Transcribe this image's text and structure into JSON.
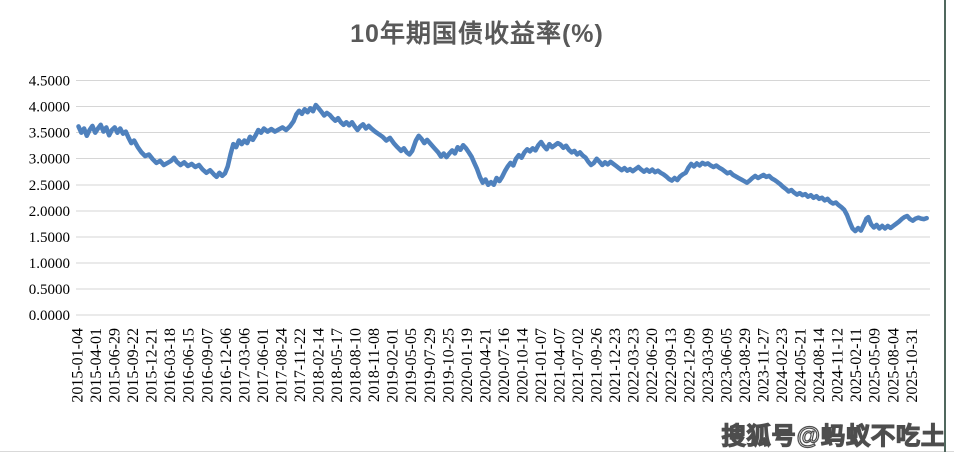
{
  "chart": {
    "title": "10年期国债收益率(%)"
  },
  "watermark": {
    "text": "搜狐号@蚂蚁不吃土"
  },
  "colors": {
    "line": "#4F81BD",
    "gridline": "#D6D6D6",
    "title_text": "#595959",
    "axis_text": "#000000",
    "background": "#FFFFFF",
    "watermark_fill": "#FFFFFF",
    "watermark_outline": "#4D4D4D",
    "right_border": "#50685E"
  },
  "chart_data": {
    "type": "line",
    "title": "10年期国债收益率(%)",
    "xlabel": "",
    "ylabel": "",
    "ylim": [
      0,
      4.5
    ],
    "ytick_step": 0.5,
    "y_tick_values": [
      0,
      0.5,
      1.0,
      1.5,
      2.0,
      2.5,
      3.0,
      3.5,
      4.0,
      4.5
    ],
    "y_tick_labels": [
      "0.0000",
      "0.5000",
      "1.0000",
      "1.5000",
      "2.0000",
      "2.5000",
      "3.0000",
      "3.5000",
      "4.0000",
      "4.5000"
    ],
    "grid": "horizontal",
    "legend": "none",
    "x_unit": "index into categories (ticks every ~60 trading days)",
    "categories": [
      "2015-01-04",
      "2015-04-01",
      "2015-06-29",
      "2015-09-22",
      "2015-12-21",
      "2016-03-18",
      "2016-06-15",
      "2016-09-07",
      "2016-12-06",
      "2017-03-06",
      "2017-06-01",
      "2017-08-24",
      "2017-11-22",
      "2018-02-14",
      "2018-05-17",
      "2018-08-10",
      "2018-11-08",
      "2019-02-01",
      "2019-05-05",
      "2019-07-29",
      "2019-10-25",
      "2020-01-19",
      "2020-04-21",
      "2020-07-16",
      "2020-10-14",
      "2021-01-07",
      "2021-04-07",
      "2021-07-02",
      "2021-09-26",
      "2021-12-23",
      "2022-03-23",
      "2022-06-20",
      "2022-09-13",
      "2022-12-09",
      "2023-03-09",
      "2023-06-05",
      "2023-08-29",
      "2023-11-27",
      "2024-02-23",
      "2024-05-21",
      "2024-08-14",
      "2024-11-12",
      "2025-02-11",
      "2025-05-09",
      "2025-08-04",
      "2025-10-31"
    ],
    "series": [
      {
        "name": "10年期国债收益率",
        "points": [
          [
            0,
            3.62
          ],
          [
            0.15,
            3.5
          ],
          [
            0.3,
            3.58
          ],
          [
            0.45,
            3.44
          ],
          [
            0.6,
            3.55
          ],
          [
            0.75,
            3.63
          ],
          [
            0.9,
            3.5
          ],
          [
            1.05,
            3.58
          ],
          [
            1.2,
            3.65
          ],
          [
            1.35,
            3.52
          ],
          [
            1.5,
            3.6
          ],
          [
            1.65,
            3.45
          ],
          [
            1.8,
            3.55
          ],
          [
            1.95,
            3.6
          ],
          [
            2.1,
            3.5
          ],
          [
            2.25,
            3.58
          ],
          [
            2.4,
            3.48
          ],
          [
            2.55,
            3.52
          ],
          [
            2.7,
            3.4
          ],
          [
            2.85,
            3.3
          ],
          [
            3.0,
            3.35
          ],
          [
            3.2,
            3.22
          ],
          [
            3.4,
            3.12
          ],
          [
            3.6,
            3.05
          ],
          [
            3.8,
            3.08
          ],
          [
            4.0,
            2.99
          ],
          [
            4.2,
            2.92
          ],
          [
            4.4,
            2.96
          ],
          [
            4.6,
            2.88
          ],
          [
            4.8,
            2.92
          ],
          [
            5.0,
            2.96
          ],
          [
            5.15,
            3.02
          ],
          [
            5.3,
            2.94
          ],
          [
            5.5,
            2.88
          ],
          [
            5.7,
            2.93
          ],
          [
            5.9,
            2.86
          ],
          [
            6.1,
            2.9
          ],
          [
            6.3,
            2.84
          ],
          [
            6.5,
            2.88
          ],
          [
            6.7,
            2.79
          ],
          [
            6.9,
            2.73
          ],
          [
            7.1,
            2.78
          ],
          [
            7.3,
            2.7
          ],
          [
            7.45,
            2.65
          ],
          [
            7.6,
            2.73
          ],
          [
            7.75,
            2.67
          ],
          [
            7.9,
            2.72
          ],
          [
            8.05,
            2.85
          ],
          [
            8.2,
            3.08
          ],
          [
            8.35,
            3.28
          ],
          [
            8.5,
            3.22
          ],
          [
            8.65,
            3.35
          ],
          [
            8.8,
            3.28
          ],
          [
            8.95,
            3.35
          ],
          [
            9.1,
            3.3
          ],
          [
            9.25,
            3.42
          ],
          [
            9.4,
            3.36
          ],
          [
            9.55,
            3.45
          ],
          [
            9.7,
            3.55
          ],
          [
            9.85,
            3.5
          ],
          [
            10.0,
            3.58
          ],
          [
            10.2,
            3.52
          ],
          [
            10.4,
            3.57
          ],
          [
            10.6,
            3.52
          ],
          [
            10.8,
            3.56
          ],
          [
            11.0,
            3.6
          ],
          [
            11.2,
            3.55
          ],
          [
            11.4,
            3.62
          ],
          [
            11.6,
            3.72
          ],
          [
            11.75,
            3.85
          ],
          [
            11.9,
            3.92
          ],
          [
            12.05,
            3.86
          ],
          [
            12.2,
            3.95
          ],
          [
            12.35,
            3.89
          ],
          [
            12.5,
            3.97
          ],
          [
            12.65,
            3.91
          ],
          [
            12.8,
            4.03
          ],
          [
            12.95,
            3.97
          ],
          [
            13.1,
            3.9
          ],
          [
            13.25,
            3.83
          ],
          [
            13.4,
            3.88
          ],
          [
            13.55,
            3.84
          ],
          [
            13.7,
            3.78
          ],
          [
            13.85,
            3.73
          ],
          [
            14.0,
            3.78
          ],
          [
            14.15,
            3.7
          ],
          [
            14.3,
            3.65
          ],
          [
            14.45,
            3.7
          ],
          [
            14.6,
            3.64
          ],
          [
            14.75,
            3.7
          ],
          [
            14.9,
            3.62
          ],
          [
            15.05,
            3.55
          ],
          [
            15.2,
            3.62
          ],
          [
            15.35,
            3.66
          ],
          [
            15.5,
            3.58
          ],
          [
            15.65,
            3.63
          ],
          [
            15.8,
            3.58
          ],
          [
            16.0,
            3.52
          ],
          [
            16.2,
            3.47
          ],
          [
            16.4,
            3.42
          ],
          [
            16.6,
            3.35
          ],
          [
            16.8,
            3.4
          ],
          [
            17.0,
            3.3
          ],
          [
            17.2,
            3.22
          ],
          [
            17.4,
            3.15
          ],
          [
            17.55,
            3.2
          ],
          [
            17.7,
            3.12
          ],
          [
            17.85,
            3.08
          ],
          [
            18.0,
            3.15
          ],
          [
            18.2,
            3.35
          ],
          [
            18.35,
            3.44
          ],
          [
            18.5,
            3.38
          ],
          [
            18.65,
            3.3
          ],
          [
            18.8,
            3.36
          ],
          [
            19.0,
            3.28
          ],
          [
            19.2,
            3.2
          ],
          [
            19.4,
            3.12
          ],
          [
            19.55,
            3.04
          ],
          [
            19.7,
            3.1
          ],
          [
            19.85,
            3.03
          ],
          [
            20.0,
            3.1
          ],
          [
            20.15,
            3.16
          ],
          [
            20.3,
            3.1
          ],
          [
            20.45,
            3.22
          ],
          [
            20.6,
            3.17
          ],
          [
            20.75,
            3.26
          ],
          [
            20.9,
            3.2
          ],
          [
            21.05,
            3.12
          ],
          [
            21.2,
            3.04
          ],
          [
            21.35,
            2.92
          ],
          [
            21.5,
            2.8
          ],
          [
            21.65,
            2.65
          ],
          [
            21.8,
            2.54
          ],
          [
            21.95,
            2.6
          ],
          [
            22.1,
            2.5
          ],
          [
            22.25,
            2.55
          ],
          [
            22.4,
            2.5
          ],
          [
            22.55,
            2.63
          ],
          [
            22.7,
            2.57
          ],
          [
            22.85,
            2.65
          ],
          [
            23.0,
            2.76
          ],
          [
            23.15,
            2.85
          ],
          [
            23.3,
            2.92
          ],
          [
            23.45,
            2.87
          ],
          [
            23.6,
            3.0
          ],
          [
            23.75,
            3.07
          ],
          [
            23.9,
            3.02
          ],
          [
            24.05,
            3.12
          ],
          [
            24.2,
            3.18
          ],
          [
            24.35,
            3.14
          ],
          [
            24.5,
            3.2
          ],
          [
            24.65,
            3.16
          ],
          [
            24.8,
            3.26
          ],
          [
            24.95,
            3.32
          ],
          [
            25.1,
            3.24
          ],
          [
            25.25,
            3.18
          ],
          [
            25.4,
            3.28
          ],
          [
            25.55,
            3.22
          ],
          [
            25.7,
            3.26
          ],
          [
            25.85,
            3.3
          ],
          [
            26.0,
            3.27
          ],
          [
            26.15,
            3.21
          ],
          [
            26.3,
            3.25
          ],
          [
            26.45,
            3.17
          ],
          [
            26.6,
            3.12
          ],
          [
            26.75,
            3.15
          ],
          [
            26.9,
            3.08
          ],
          [
            27.05,
            3.12
          ],
          [
            27.2,
            3.06
          ],
          [
            27.35,
            3.02
          ],
          [
            27.5,
            2.94
          ],
          [
            27.65,
            2.88
          ],
          [
            27.8,
            2.92
          ],
          [
            27.95,
            3.0
          ],
          [
            28.1,
            2.94
          ],
          [
            28.25,
            2.88
          ],
          [
            28.4,
            2.93
          ],
          [
            28.55,
            2.89
          ],
          [
            28.7,
            2.94
          ],
          [
            28.85,
            2.9
          ],
          [
            29.0,
            2.86
          ],
          [
            29.15,
            2.82
          ],
          [
            29.3,
            2.78
          ],
          [
            29.45,
            2.82
          ],
          [
            29.6,
            2.77
          ],
          [
            29.75,
            2.8
          ],
          [
            29.9,
            2.76
          ],
          [
            30.05,
            2.8
          ],
          [
            30.2,
            2.84
          ],
          [
            30.35,
            2.79
          ],
          [
            30.5,
            2.75
          ],
          [
            30.65,
            2.79
          ],
          [
            30.8,
            2.75
          ],
          [
            30.95,
            2.79
          ],
          [
            31.1,
            2.74
          ],
          [
            31.25,
            2.77
          ],
          [
            31.4,
            2.73
          ],
          [
            31.55,
            2.7
          ],
          [
            31.7,
            2.66
          ],
          [
            31.85,
            2.61
          ],
          [
            32.0,
            2.58
          ],
          [
            32.15,
            2.63
          ],
          [
            32.3,
            2.59
          ],
          [
            32.45,
            2.66
          ],
          [
            32.6,
            2.7
          ],
          [
            32.75,
            2.73
          ],
          [
            32.9,
            2.83
          ],
          [
            33.05,
            2.9
          ],
          [
            33.2,
            2.85
          ],
          [
            33.35,
            2.91
          ],
          [
            33.5,
            2.87
          ],
          [
            33.65,
            2.92
          ],
          [
            33.8,
            2.89
          ],
          [
            33.95,
            2.91
          ],
          [
            34.1,
            2.87
          ],
          [
            34.25,
            2.84
          ],
          [
            34.4,
            2.87
          ],
          [
            34.55,
            2.83
          ],
          [
            34.7,
            2.8
          ],
          [
            34.85,
            2.76
          ],
          [
            35.0,
            2.72
          ],
          [
            35.15,
            2.74
          ],
          [
            35.3,
            2.69
          ],
          [
            35.45,
            2.66
          ],
          [
            35.6,
            2.63
          ],
          [
            35.75,
            2.6
          ],
          [
            35.9,
            2.57
          ],
          [
            36.05,
            2.54
          ],
          [
            36.2,
            2.58
          ],
          [
            36.35,
            2.63
          ],
          [
            36.5,
            2.67
          ],
          [
            36.65,
            2.63
          ],
          [
            36.8,
            2.66
          ],
          [
            36.95,
            2.69
          ],
          [
            37.1,
            2.65
          ],
          [
            37.25,
            2.67
          ],
          [
            37.4,
            2.62
          ],
          [
            37.55,
            2.59
          ],
          [
            37.7,
            2.55
          ],
          [
            37.85,
            2.51
          ],
          [
            38.0,
            2.46
          ],
          [
            38.15,
            2.42
          ],
          [
            38.3,
            2.37
          ],
          [
            38.45,
            2.4
          ],
          [
            38.6,
            2.35
          ],
          [
            38.75,
            2.31
          ],
          [
            38.9,
            2.34
          ],
          [
            39.05,
            2.3
          ],
          [
            39.2,
            2.32
          ],
          [
            39.35,
            2.27
          ],
          [
            39.5,
            2.3
          ],
          [
            39.65,
            2.25
          ],
          [
            39.8,
            2.28
          ],
          [
            39.95,
            2.23
          ],
          [
            40.1,
            2.25
          ],
          [
            40.25,
            2.2
          ],
          [
            40.4,
            2.23
          ],
          [
            40.55,
            2.17
          ],
          [
            40.7,
            2.14
          ],
          [
            40.85,
            2.16
          ],
          [
            41.0,
            2.11
          ],
          [
            41.15,
            2.07
          ],
          [
            41.3,
            2.02
          ],
          [
            41.45,
            1.92
          ],
          [
            41.6,
            1.78
          ],
          [
            41.75,
            1.66
          ],
          [
            41.9,
            1.61
          ],
          [
            42.05,
            1.67
          ],
          [
            42.2,
            1.62
          ],
          [
            42.35,
            1.73
          ],
          [
            42.5,
            1.85
          ],
          [
            42.6,
            1.88
          ],
          [
            42.75,
            1.74
          ],
          [
            42.9,
            1.68
          ],
          [
            43.05,
            1.73
          ],
          [
            43.2,
            1.66
          ],
          [
            43.35,
            1.71
          ],
          [
            43.5,
            1.66
          ],
          [
            43.65,
            1.71
          ],
          [
            43.8,
            1.67
          ],
          [
            43.95,
            1.71
          ],
          [
            44.1,
            1.75
          ],
          [
            44.25,
            1.79
          ],
          [
            44.4,
            1.84
          ],
          [
            44.55,
            1.88
          ],
          [
            44.7,
            1.9
          ],
          [
            44.85,
            1.84
          ],
          [
            45.0,
            1.81
          ],
          [
            45.15,
            1.85
          ],
          [
            45.3,
            1.87
          ],
          [
            45.45,
            1.85
          ],
          [
            45.6,
            1.84
          ],
          [
            45.75,
            1.86
          ]
        ]
      }
    ]
  }
}
